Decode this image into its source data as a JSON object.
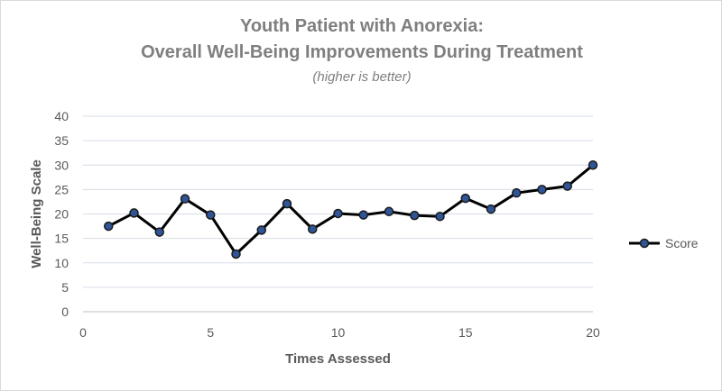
{
  "chart_data": {
    "type": "line",
    "title_lines": [
      "Youth Patient with Anorexia:",
      "Overall Well-Being Improvements During Treatment"
    ],
    "subtitle": "(higher is better)",
    "xlabel": "Times Assessed",
    "ylabel": "Well-Being Scale",
    "xlim": [
      0,
      20
    ],
    "ylim": [
      0,
      40
    ],
    "x_ticks": [
      0,
      5,
      10,
      15,
      20
    ],
    "y_ticks": [
      0,
      5,
      10,
      15,
      20,
      25,
      30,
      35,
      40
    ],
    "grid": true,
    "legend_position": "right",
    "series": [
      {
        "name": "Score",
        "color": "#000000",
        "marker_color": "#2f5597",
        "x": [
          1,
          2,
          3,
          4,
          5,
          6,
          7,
          8,
          9,
          10,
          11,
          12,
          13,
          14,
          15,
          16,
          17,
          18,
          19,
          20
        ],
        "values": [
          17.5,
          20.2,
          16.3,
          23.1,
          19.8,
          11.8,
          16.7,
          22.1,
          16.9,
          20.1,
          19.8,
          20.5,
          19.7,
          19.5,
          23.2,
          21.0,
          24.3,
          25.0,
          25.7,
          30.0
        ]
      }
    ],
    "colors": {
      "gridline": "#d6dce5",
      "axis": "#bfbfbf",
      "text": "#595959",
      "title": "#7f7f7f"
    }
  }
}
